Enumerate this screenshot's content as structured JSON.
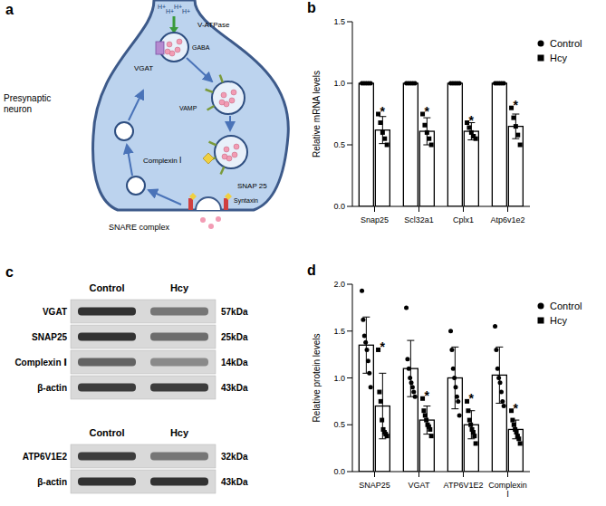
{
  "panel_a": {
    "label": "a",
    "protons": [
      "H+",
      "H+",
      "H+",
      "H+"
    ],
    "v_atpase": "V-ATPase",
    "gaba": "GABA",
    "vgat": "VGAT",
    "neuron": "Presynaptic neuron",
    "vamp": "VAMP",
    "complexin": "Complexin Ⅰ",
    "snap25": "SNAP 25",
    "syntaxin": "Syntaxin",
    "snare": "SNARE complex"
  },
  "chart_data": [
    {
      "panel_label": "b",
      "type": "bar",
      "ylabel": "Relative mRNA levels",
      "categories": [
        "Snap25",
        "Scl32a1",
        "Cplx1",
        "Atp6v1e2"
      ],
      "ylim": [
        0,
        1.5
      ],
      "yticks": [
        {
          "value": 0,
          "label": "0.0"
        },
        {
          "value": 0.5,
          "label": "0.5"
        },
        {
          "value": 1,
          "label": "1.0"
        },
        {
          "value": 1.5,
          "label": "1.5"
        }
      ],
      "legend": "right",
      "series": [
        {
          "name": "Control",
          "color": "#000000",
          "marker": "circle",
          "values": [
            1,
            1,
            1,
            1
          ],
          "errors": [
            0,
            0,
            0,
            0
          ],
          "points": [
            [
              1,
              1,
              1,
              1,
              1
            ],
            [
              1,
              1,
              1,
              1,
              1
            ],
            [
              1,
              1,
              1,
              1,
              1
            ],
            [
              1,
              1,
              1,
              1,
              1
            ]
          ]
        },
        {
          "name": "Hcy",
          "color": "#000000",
          "marker": "square",
          "values": [
            0.62,
            0.61,
            0.61,
            0.65
          ],
          "errors": [
            0.11,
            0.11,
            0.07,
            0.1
          ],
          "points": [
            [
              0.75,
              0.68,
              0.6,
              0.55,
              0.5
            ],
            [
              0.75,
              0.66,
              0.6,
              0.55,
              0.5
            ],
            [
              0.68,
              0.64,
              0.6,
              0.57,
              0.55
            ],
            [
              0.8,
              0.72,
              0.65,
              0.58,
              0.5
            ]
          ],
          "annotations": [
            "*",
            "*",
            "*",
            "*"
          ]
        }
      ]
    },
    {
      "panel_label": "d",
      "type": "bar",
      "ylabel": "Relative protein levels",
      "categories": [
        "SNAP25",
        "VGAT",
        "ATP6V1E2",
        "Complexin Ⅰ"
      ],
      "ylim": [
        0,
        2
      ],
      "yticks": [
        {
          "value": 0,
          "label": "0.0"
        },
        {
          "value": 0.5,
          "label": "0.5"
        },
        {
          "value": 1,
          "label": "1.0"
        },
        {
          "value": 1.5,
          "label": "1.5"
        },
        {
          "value": 2,
          "label": "2.0"
        }
      ],
      "legend": "right",
      "series": [
        {
          "name": "Control",
          "color": "#000000",
          "marker": "circle",
          "values": [
            1.35,
            1.1,
            1.0,
            1.03
          ],
          "errors": [
            0.3,
            0.3,
            0.33,
            0.3
          ],
          "points": [
            [
              1.93,
              1.62,
              1.45,
              1.38,
              1.3,
              1.18,
              1.05,
              0.9
            ],
            [
              1.75,
              1.2,
              1.1,
              1.0,
              0.95,
              0.9,
              0.85,
              0.8
            ],
            [
              1.5,
              1.3,
              1.1,
              1.0,
              0.9,
              0.8,
              0.75,
              0.6
            ],
            [
              1.55,
              1.3,
              1.1,
              1.0,
              0.95,
              0.85,
              0.75,
              0.7
            ]
          ]
        },
        {
          "name": "Hcy",
          "color": "#000000",
          "marker": "square",
          "values": [
            0.7,
            0.55,
            0.5,
            0.45
          ],
          "errors": [
            0.35,
            0.15,
            0.15,
            0.1
          ],
          "points": [
            [
              1.3,
              0.85,
              0.75,
              0.55,
              0.45,
              0.42,
              0.4,
              0.38
            ],
            [
              0.78,
              0.65,
              0.6,
              0.55,
              0.5,
              0.48,
              0.45,
              0.38
            ],
            [
              0.75,
              0.65,
              0.55,
              0.5,
              0.45,
              0.42,
              0.38,
              0.3
            ],
            [
              0.65,
              0.55,
              0.5,
              0.45,
              0.42,
              0.38,
              0.35,
              0.3
            ]
          ],
          "annotations": [
            "*",
            "*",
            "*",
            "*"
          ]
        }
      ]
    }
  ],
  "panel_c": {
    "label": "c",
    "blots": [
      {
        "columns": [
          "Control",
          "Hcy"
        ],
        "rows": [
          {
            "name": "VGAT",
            "size": "57kDa"
          },
          {
            "name": "SNAP25",
            "size": "25kDa"
          },
          {
            "name": "Complexin Ⅰ",
            "size": "14kDa"
          },
          {
            "name": "β-actin",
            "size": "43kDa"
          }
        ]
      },
      {
        "columns": [
          "Control",
          "Hcy"
        ],
        "rows": [
          {
            "name": "ATP6V1E2",
            "size": "32kDa"
          },
          {
            "name": "β-actin",
            "size": "43kDa"
          }
        ]
      }
    ]
  }
}
